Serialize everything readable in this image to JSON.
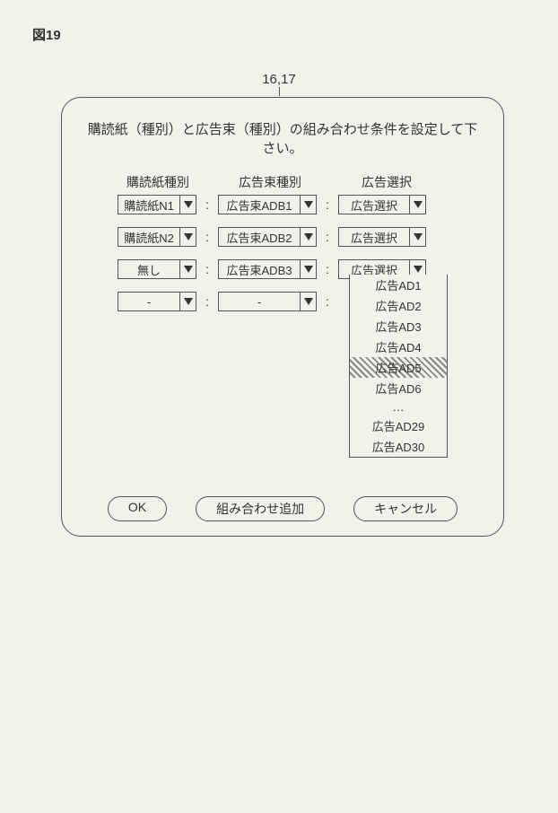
{
  "figure_label": "図19",
  "reference_label": "16,17",
  "instruction": "購読紙（種別）と広告束（種別）の組み合わせ条件を設定して下さい。",
  "headers": {
    "c1": "購読紙種別",
    "c2": "広告束種別",
    "c3": "広告選択"
  },
  "rows": [
    {
      "c1": "購読紙N1",
      "c2": "広告束ADB1",
      "c3": "広告選択"
    },
    {
      "c1": "購読紙N2",
      "c2": "広告束ADB2",
      "c3": "広告選択"
    },
    {
      "c1": "無し",
      "c2": "広告束ADB3",
      "c3": "広告選択"
    },
    {
      "c1": "-",
      "c2": "-",
      "c3": null
    }
  ],
  "dropdown_options": {
    "items": [
      "広告AD1",
      "広告AD2",
      "広告AD3",
      "広告AD4",
      "広告AD5",
      "広告AD6",
      "…",
      "広告AD29",
      "広告AD30"
    ],
    "selected_index": 4
  },
  "buttons": {
    "ok": "OK",
    "add": "組み合わせ追加",
    "cancel": "キャンセル"
  },
  "colors": {
    "bg": "#f2f1ea",
    "border": "#555555",
    "text": "#333333"
  }
}
